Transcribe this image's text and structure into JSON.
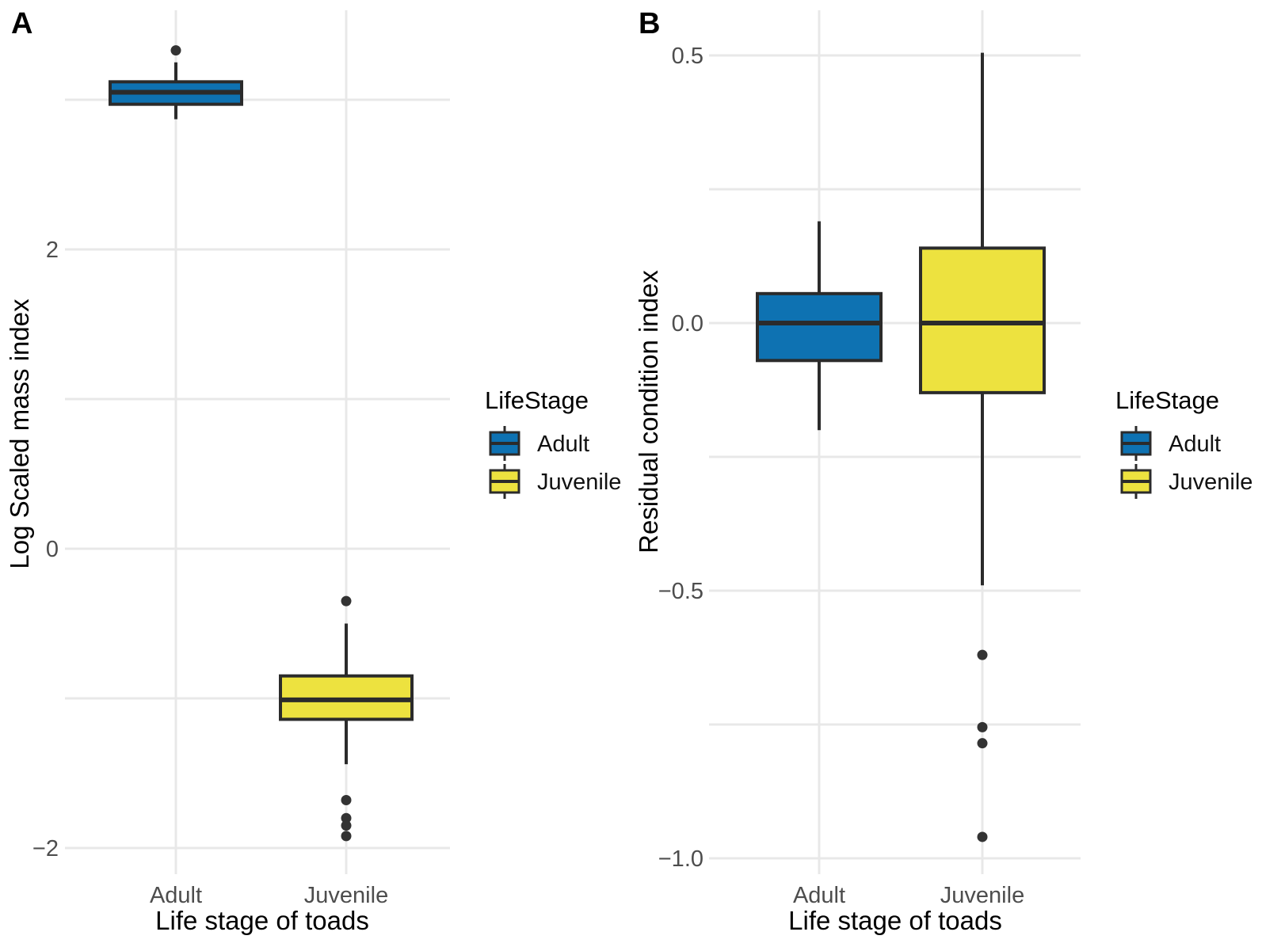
{
  "figure": {
    "style": {
      "background": "#ffffff",
      "box_border": "#2b2b2b",
      "median_line": "#2b2b2b",
      "whisker": "#2b2b2b",
      "outlier": "#333333",
      "gridline": "#e8e8e8",
      "tick_text": "#4d4d4d",
      "adult_fill": "#0e72b2",
      "juvenile_fill": "#ede23f"
    }
  },
  "chart_data": [
    {
      "type": "boxplot",
      "panel_label": "A",
      "title": "",
      "xlabel": "Life stage of toads",
      "ylabel": "Log Scaled mass index",
      "categories": [
        "Adult",
        "Juvenile"
      ],
      "legend": {
        "title": "LifeStage",
        "entries": [
          "Adult",
          "Juvenile"
        ]
      },
      "y_ticks": [
        2,
        0,
        -2
      ],
      "y_tick_labels": [
        "2",
        "0",
        "−2"
      ],
      "gridline_values": [
        3,
        2,
        1,
        0,
        -1,
        -2
      ],
      "ylim": [
        -2.18,
        3.59
      ],
      "grid": "on",
      "legend_position": "right",
      "series": [
        {
          "name": "Adult",
          "color": "#0e72b2",
          "q1": 2.97,
          "median": 3.05,
          "q3": 3.12,
          "whisker_low": 2.87,
          "whisker_high": 3.25,
          "outliers": [
            3.33
          ]
        },
        {
          "name": "Juvenile",
          "color": "#ede23f",
          "q1": -1.14,
          "median": -1.01,
          "q3": -0.85,
          "whisker_low": -1.44,
          "whisker_high": -0.5,
          "outliers": [
            -0.35,
            -1.68,
            -1.8,
            -1.85,
            -1.92
          ]
        }
      ]
    },
    {
      "type": "boxplot",
      "panel_label": "B",
      "title": "",
      "xlabel": "Life stage of toads",
      "ylabel": "Residual condition index",
      "categories": [
        "Adult",
        "Juvenile"
      ],
      "legend": {
        "title": "LifeStage",
        "entries": [
          "Adult",
          "Juvenile"
        ]
      },
      "y_ticks": [
        0.5,
        0.0,
        -0.5,
        -1.0
      ],
      "y_tick_labels": [
        "0.5",
        "0.0",
        "−0.5",
        "−1.0"
      ],
      "gridline_values": [
        0.5,
        0.25,
        0,
        -0.25,
        -0.5,
        -0.75,
        -1
      ],
      "ylim": [
        -1.03,
        0.58
      ],
      "grid": "on",
      "legend_position": "right",
      "series": [
        {
          "name": "Adult",
          "color": "#0e72b2",
          "q1": -0.07,
          "median": 0.0,
          "q3": 0.055,
          "whisker_low": -0.2,
          "whisker_high": 0.19,
          "outliers": []
        },
        {
          "name": "Juvenile",
          "color": "#ede23f",
          "q1": -0.13,
          "median": 0.0,
          "q3": 0.14,
          "whisker_low": -0.49,
          "whisker_high": 0.505,
          "outliers": [
            -0.62,
            -0.755,
            -0.785,
            -0.96
          ]
        }
      ]
    }
  ]
}
